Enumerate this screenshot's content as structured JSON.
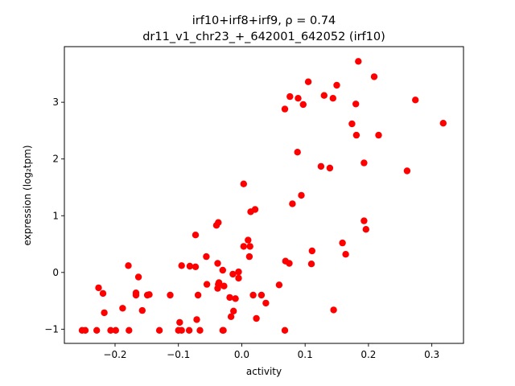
{
  "chart_data": {
    "type": "scatter",
    "title_line1": "irf10+irf8+irf9, ρ = 0.74",
    "title_line2": "dr11_v1_chr23_+_642001_642052 (irf10)",
    "xlabel": "activity",
    "ylabel": "expression (log₂tpm)",
    "xlim": [
      -0.28,
      0.35
    ],
    "ylim": [
      -1.25,
      3.98
    ],
    "xticks": [
      -0.2,
      -0.1,
      0.0,
      0.1,
      0.2,
      0.3
    ],
    "xtick_labels": [
      "−0.2",
      "−0.1",
      "0.0",
      "0.1",
      "0.2",
      "0.3"
    ],
    "yticks": [
      -1,
      0,
      1,
      2,
      3
    ],
    "ytick_labels": [
      "−1",
      "0",
      "1",
      "2",
      "3"
    ],
    "marker_color": "#ff0000",
    "grid": false,
    "points": [
      [
        -0.252,
        -1.02
      ],
      [
        -0.247,
        -1.02
      ],
      [
        -0.229,
        -1.02
      ],
      [
        -0.207,
        -1.02
      ],
      [
        -0.199,
        -1.02
      ],
      [
        -0.178,
        -1.02
      ],
      [
        -0.13,
        -1.02
      ],
      [
        -0.1,
        -1.02
      ],
      [
        -0.095,
        -1.02
      ],
      [
        -0.083,
        -1.02
      ],
      [
        -0.066,
        -1.02
      ],
      [
        -0.029,
        -1.02
      ],
      [
        -0.03,
        -1.02
      ],
      [
        0.068,
        -1.02
      ],
      [
        -0.226,
        -0.27
      ],
      [
        -0.219,
        -0.37
      ],
      [
        -0.217,
        -0.71
      ],
      [
        -0.188,
        -0.63
      ],
      [
        -0.179,
        0.12
      ],
      [
        -0.167,
        -0.36
      ],
      [
        -0.167,
        -0.4
      ],
      [
        -0.163,
        -0.08
      ],
      [
        -0.157,
        -0.67
      ],
      [
        -0.149,
        -0.4
      ],
      [
        -0.146,
        -0.39
      ],
      [
        -0.113,
        -0.4
      ],
      [
        -0.098,
        -0.88
      ],
      [
        -0.095,
        0.12
      ],
      [
        -0.082,
        0.11
      ],
      [
        -0.073,
        0.66
      ],
      [
        -0.073,
        0.1
      ],
      [
        -0.071,
        -0.83
      ],
      [
        -0.069,
        -0.4
      ],
      [
        -0.056,
        0.28
      ],
      [
        -0.055,
        -0.21
      ],
      [
        -0.04,
        0.83
      ],
      [
        -0.037,
        0.88
      ],
      [
        -0.038,
        0.16
      ],
      [
        -0.038,
        -0.28
      ],
      [
        -0.037,
        -0.21
      ],
      [
        -0.036,
        -0.18
      ],
      [
        -0.03,
        0.04
      ],
      [
        -0.028,
        -0.24
      ],
      [
        -0.019,
        -0.44
      ],
      [
        -0.017,
        -0.78
      ],
      [
        -0.014,
        -0.03
      ],
      [
        -0.013,
        -0.68
      ],
      [
        -0.01,
        -0.46
      ],
      [
        -0.005,
        -0.1
      ],
      [
        -0.005,
        0.01
      ],
      [
        0.003,
        1.56
      ],
      [
        0.003,
        0.46
      ],
      [
        0.01,
        0.57
      ],
      [
        0.012,
        0.28
      ],
      [
        0.013,
        0.46
      ],
      [
        0.014,
        1.07
      ],
      [
        0.018,
        -0.4
      ],
      [
        0.021,
        1.11
      ],
      [
        0.023,
        -0.81
      ],
      [
        0.031,
        -0.4
      ],
      [
        0.038,
        -0.54
      ],
      [
        0.059,
        -0.22
      ],
      [
        0.068,
        2.88
      ],
      [
        0.069,
        0.2
      ],
      [
        0.075,
        0.16
      ],
      [
        0.076,
        3.1
      ],
      [
        0.08,
        1.21
      ],
      [
        0.088,
        2.12
      ],
      [
        0.089,
        3.07
      ],
      [
        0.094,
        1.36
      ],
      [
        0.097,
        2.96
      ],
      [
        0.105,
        3.36
      ],
      [
        0.11,
        0.15
      ],
      [
        0.111,
        0.38
      ],
      [
        0.125,
        1.87
      ],
      [
        0.13,
        3.12
      ],
      [
        0.139,
        1.84
      ],
      [
        0.144,
        3.07
      ],
      [
        0.145,
        -0.66
      ],
      [
        0.15,
        3.3
      ],
      [
        0.159,
        0.52
      ],
      [
        0.164,
        0.32
      ],
      [
        0.174,
        2.62
      ],
      [
        0.18,
        2.97
      ],
      [
        0.181,
        2.42
      ],
      [
        0.184,
        3.72
      ],
      [
        0.193,
        1.93
      ],
      [
        0.193,
        0.91
      ],
      [
        0.196,
        0.76
      ],
      [
        0.209,
        3.45
      ],
      [
        0.216,
        2.42
      ],
      [
        0.261,
        1.79
      ],
      [
        0.274,
        3.04
      ],
      [
        0.318,
        2.63
      ]
    ]
  }
}
